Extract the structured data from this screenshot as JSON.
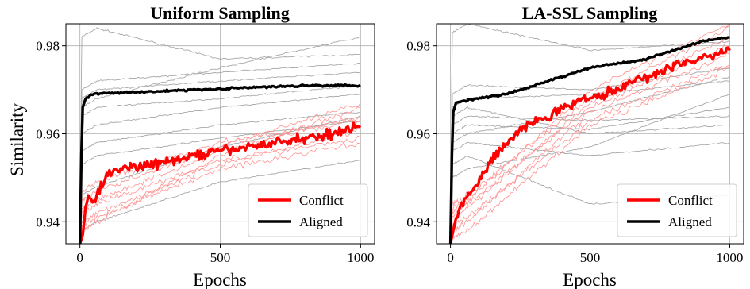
{
  "figure": {
    "ylabel": "Similarity",
    "xlabel": "Epochs"
  },
  "legend": {
    "labels": [
      "Conflict",
      "Aligned"
    ],
    "colors": [
      "#ff0000",
      "#000000"
    ]
  },
  "colors": {
    "conflict_thin": "#ff8a8a",
    "neutral_thin": "#a8a8a8",
    "grid": "#b0b0b0"
  },
  "chart_data": [
    {
      "type": "line",
      "title": "Uniform Sampling",
      "xlabel": "Epochs",
      "ylabel": "Similarity",
      "xlim": [
        -50,
        1050
      ],
      "ylim": [
        0.935,
        0.985
      ],
      "x_ticks": [
        0,
        500,
        1000
      ],
      "x_tick_labels": [
        "0",
        "500",
        "1000"
      ],
      "y_ticks": [
        0.94,
        0.96,
        0.98
      ],
      "y_tick_labels": [
        "0.94",
        "0.96",
        "0.98"
      ],
      "grid": true,
      "legend_position": "lower-right",
      "series": [
        {
          "name": "Conflict",
          "role": "mean",
          "x": [
            0,
            10,
            20,
            30,
            50,
            75,
            100,
            150,
            200,
            250,
            300,
            350,
            400,
            450,
            500,
            550,
            600,
            650,
            700,
            750,
            800,
            850,
            900,
            950,
            1000
          ],
          "values": [
            0.935,
            0.937,
            0.943,
            0.946,
            0.944,
            0.948,
            0.951,
            0.952,
            0.9525,
            0.953,
            0.9535,
            0.954,
            0.955,
            0.9555,
            0.956,
            0.9565,
            0.957,
            0.9575,
            0.958,
            0.9585,
            0.959,
            0.9595,
            0.96,
            0.961,
            0.962
          ]
        },
        {
          "name": "Aligned",
          "role": "mean",
          "x": [
            0,
            5,
            10,
            20,
            30,
            50,
            100,
            200,
            300,
            400,
            500,
            600,
            700,
            800,
            900,
            1000
          ],
          "values": [
            0.935,
            0.955,
            0.966,
            0.968,
            0.9685,
            0.969,
            0.9692,
            0.9695,
            0.9697,
            0.97,
            0.9702,
            0.9705,
            0.9707,
            0.971,
            0.971,
            0.971
          ]
        }
      ]
    },
    {
      "type": "line",
      "title": "LA-SSL Sampling",
      "xlabel": "Epochs",
      "ylabel": "",
      "xlim": [
        -50,
        1050
      ],
      "ylim": [
        0.935,
        0.985
      ],
      "x_ticks": [
        0,
        500,
        1000
      ],
      "x_tick_labels": [
        "0",
        "500",
        "1000"
      ],
      "y_ticks": [
        0.94,
        0.96,
        0.98
      ],
      "y_tick_labels": [
        "0.94",
        "0.96",
        "0.98"
      ],
      "grid": true,
      "legend_position": "lower-right",
      "series": [
        {
          "name": "Conflict",
          "role": "mean",
          "x": [
            0,
            10,
            20,
            30,
            50,
            75,
            100,
            150,
            200,
            250,
            300,
            350,
            400,
            450,
            500,
            550,
            600,
            650,
            700,
            750,
            800,
            850,
            900,
            950,
            1000
          ],
          "values": [
            0.935,
            0.938,
            0.941,
            0.943,
            0.945,
            0.947,
            0.949,
            0.954,
            0.958,
            0.961,
            0.963,
            0.964,
            0.966,
            0.967,
            0.968,
            0.969,
            0.97,
            0.972,
            0.973,
            0.974,
            0.9755,
            0.9765,
            0.977,
            0.978,
            0.979
          ]
        },
        {
          "name": "Aligned",
          "role": "mean",
          "x": [
            0,
            5,
            10,
            20,
            30,
            50,
            100,
            150,
            200,
            250,
            300,
            350,
            400,
            450,
            500,
            550,
            600,
            650,
            700,
            750,
            800,
            850,
            900,
            950,
            1000
          ],
          "values": [
            0.935,
            0.955,
            0.965,
            0.967,
            0.9672,
            0.9675,
            0.968,
            0.9685,
            0.969,
            0.97,
            0.971,
            0.972,
            0.973,
            0.974,
            0.975,
            0.9755,
            0.976,
            0.9765,
            0.977,
            0.978,
            0.979,
            0.98,
            0.981,
            0.9815,
            0.982
          ]
        }
      ]
    }
  ]
}
